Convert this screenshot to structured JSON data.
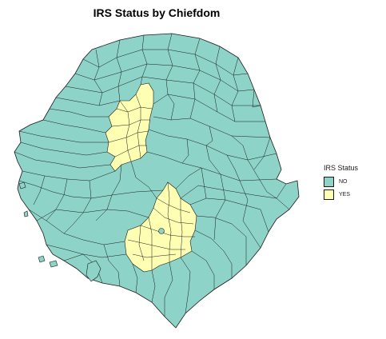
{
  "title": "IRS Status by Chiefdom",
  "legend": {
    "title": "IRS Status",
    "items": [
      {
        "label": "NO",
        "color": "#8dd3c7"
      },
      {
        "label": "YES",
        "color": "#ffffb3"
      }
    ]
  },
  "colors": {
    "no": "#8dd3c7",
    "yes": "#ffffb3",
    "border": "#1a1a1a"
  }
}
